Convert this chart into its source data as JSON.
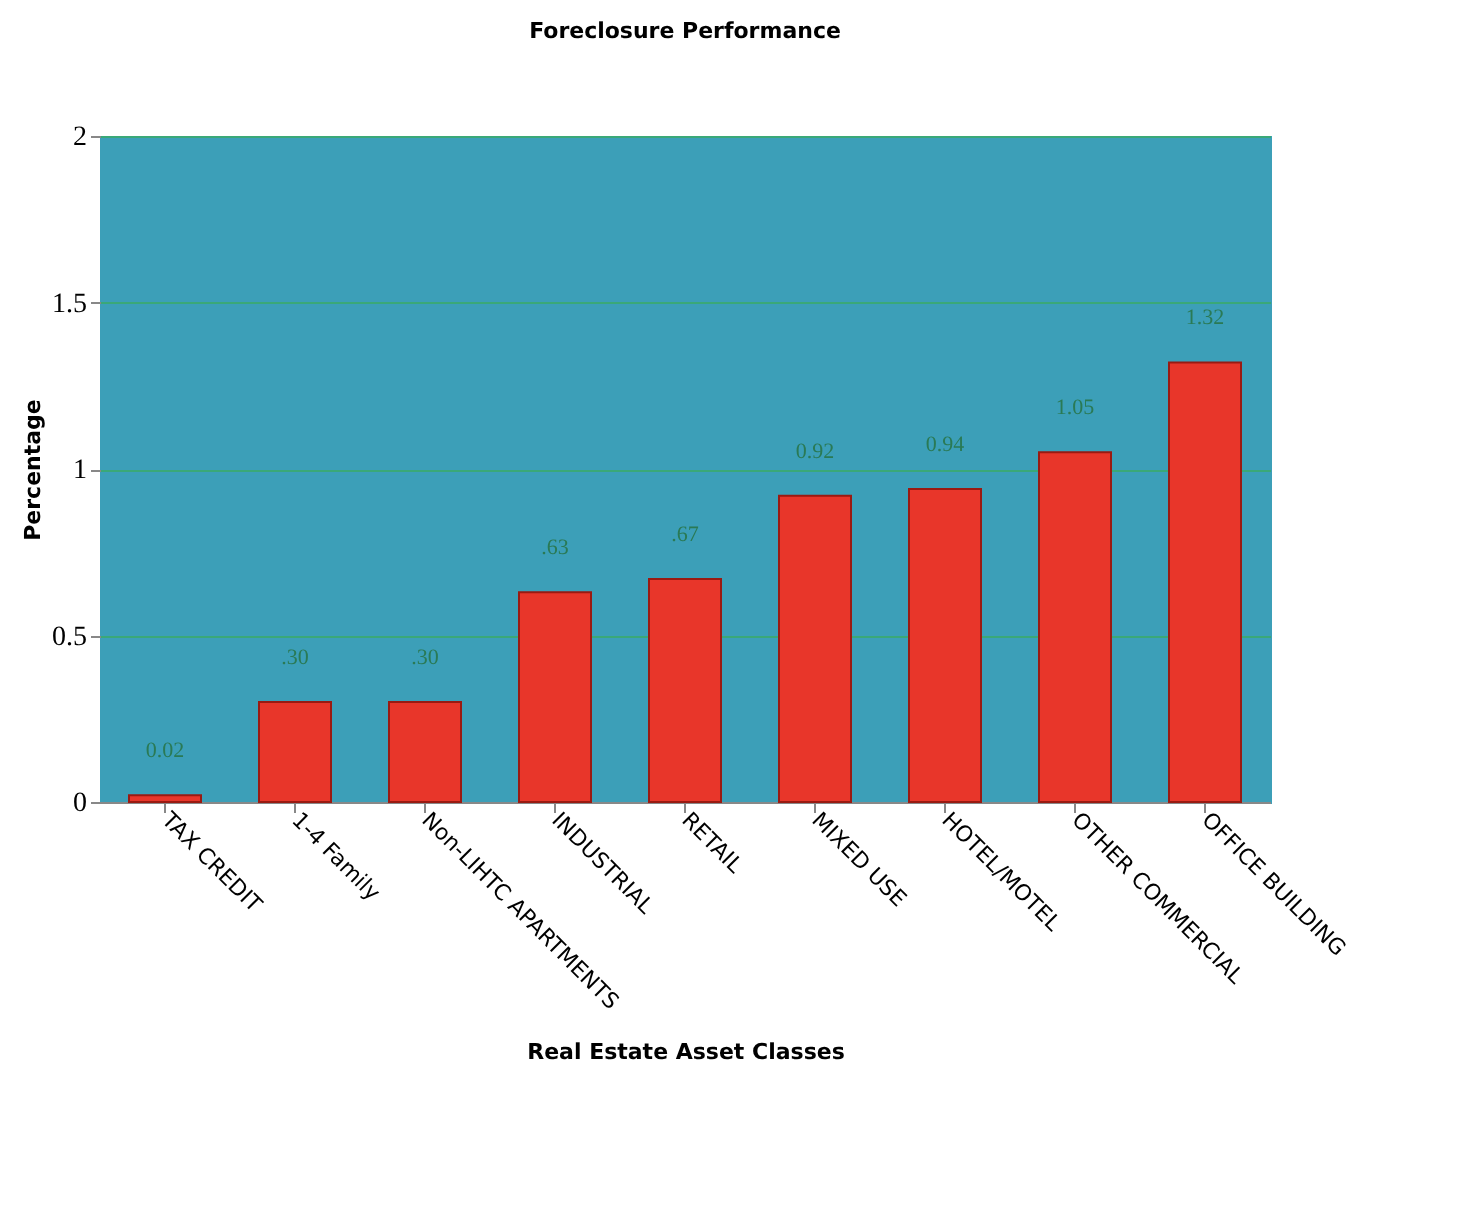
{
  "chart_data": {
    "type": "bar",
    "title": "Foreclosure Performance",
    "xlabel": "Real Estate Asset Classes",
    "ylabel": "Percentage",
    "categories": [
      "TAX CREDIT",
      "1-4 Family",
      "Non-LIHTC APARTMENTS",
      "INDUSTRIAL",
      "RETAIL",
      "MIXED USE",
      "HOTEL/MOTEL",
      "OTHER COMMERCIAL",
      "OFFICE  BUILDING"
    ],
    "values": [
      0.02,
      0.3,
      0.3,
      0.63,
      0.67,
      0.92,
      0.94,
      1.05,
      1.32
    ],
    "value_labels": [
      "0.02",
      ".30",
      ".30",
      ".63",
      ".67",
      "0.92",
      "0.94",
      "1.05",
      "1.32"
    ],
    "color": "#e8362a",
    "ylim": [
      0,
      2
    ],
    "yticks": [
      0,
      0.5,
      1,
      1.5,
      2
    ],
    "grid": "y"
  }
}
